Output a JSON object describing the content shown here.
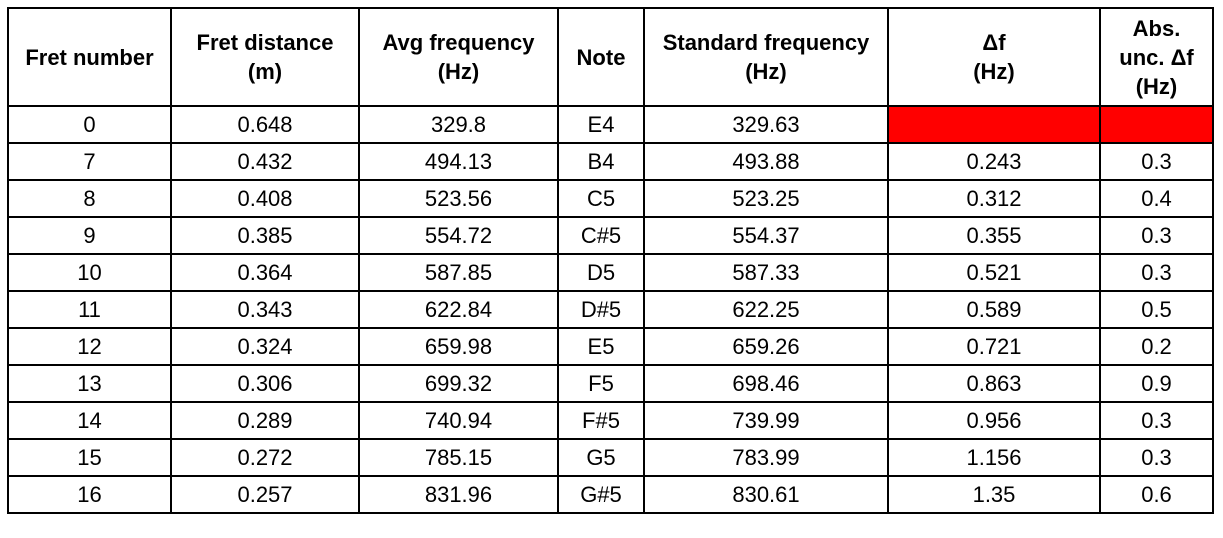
{
  "table": {
    "headers": [
      "Fret number",
      "Fret distance\n(m)",
      "Avg frequency\n(Hz)",
      "Note",
      "Standard frequency\n(Hz)",
      "Δf\n(Hz)",
      "Abs.\nunc. Δf\n(Hz)"
    ],
    "rows": [
      [
        "0",
        "0.648",
        "329.8",
        "E4",
        "329.63",
        "",
        ""
      ],
      [
        "7",
        "0.432",
        "494.13",
        "B4",
        "493.88",
        "0.243",
        "0.3"
      ],
      [
        "8",
        "0.408",
        "523.56",
        "C5",
        "523.25",
        "0.312",
        "0.4"
      ],
      [
        "9",
        "0.385",
        "554.72",
        "C#5",
        "554.37",
        "0.355",
        "0.3"
      ],
      [
        "10",
        "0.364",
        "587.85",
        "D5",
        "587.33",
        "0.521",
        "0.3"
      ],
      [
        "11",
        "0.343",
        "622.84",
        "D#5",
        "622.25",
        "0.589",
        "0.5"
      ],
      [
        "12",
        "0.324",
        "659.98",
        "E5",
        "659.26",
        "0.721",
        "0.2"
      ],
      [
        "13",
        "0.306",
        "699.32",
        "F5",
        "698.46",
        "0.863",
        "0.9"
      ],
      [
        "14",
        "0.289",
        "740.94",
        "F#5",
        "739.99",
        "0.956",
        "0.3"
      ],
      [
        "15",
        "0.272",
        "785.15",
        "G5",
        "783.99",
        "1.156",
        "0.3"
      ],
      [
        "16",
        "0.257",
        "831.96",
        "G#5",
        "830.61",
        "1.35",
        "0.6"
      ]
    ],
    "missing_cell_color": "#ff0000"
  }
}
